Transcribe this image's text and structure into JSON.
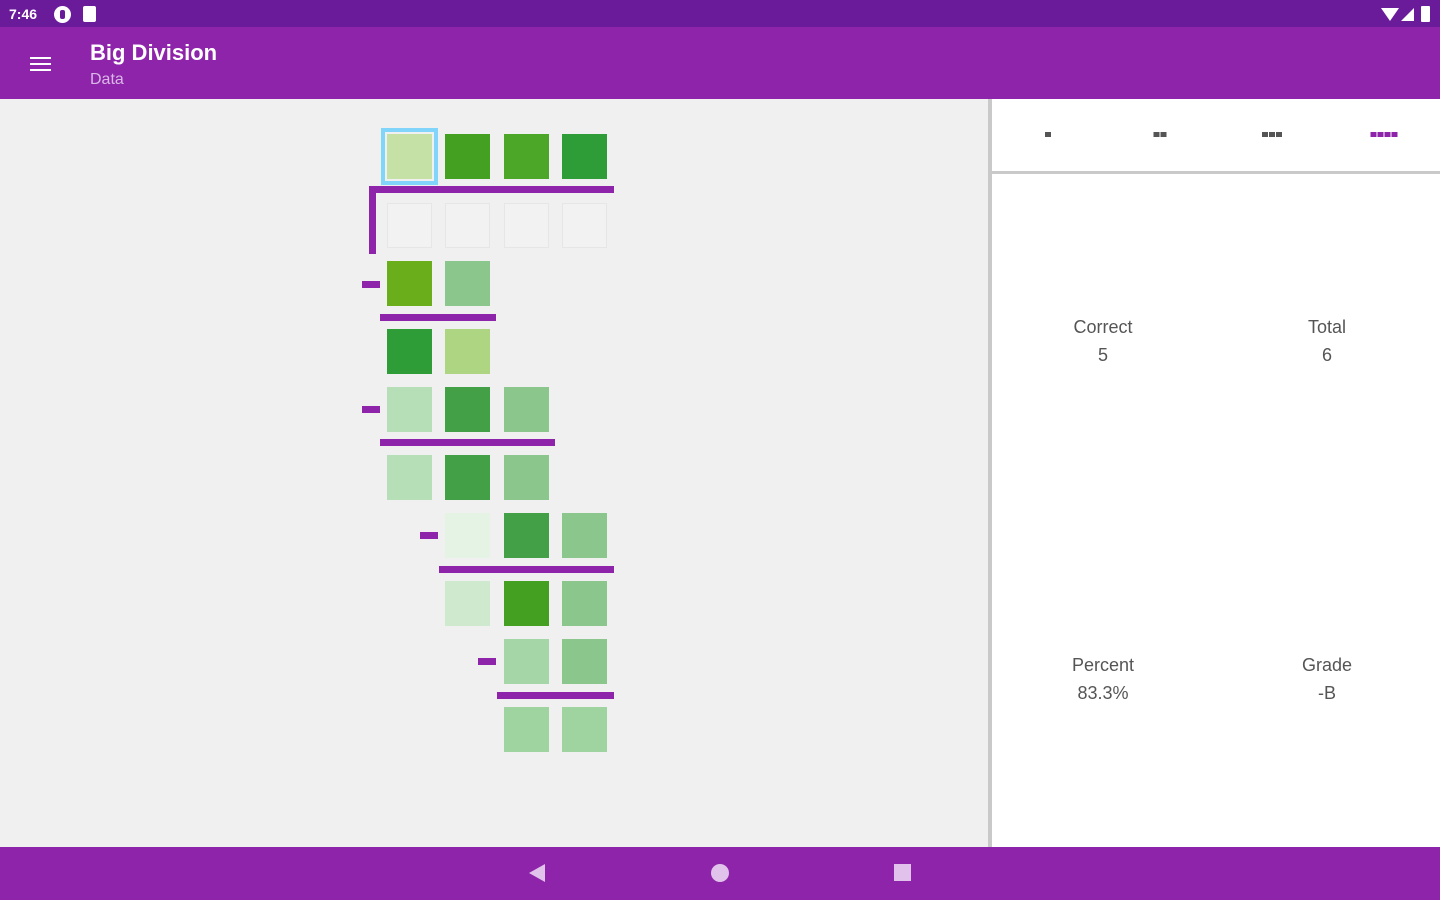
{
  "status_bar": {
    "time": "7:46"
  },
  "app_bar": {
    "title": "Big Division",
    "subtitle": "Data"
  },
  "tabs": [
    {
      "name": "tab-level-1",
      "dots": 1,
      "active": false
    },
    {
      "name": "tab-level-2",
      "dots": 2,
      "active": false
    },
    {
      "name": "tab-level-3",
      "dots": 3,
      "active": false
    },
    {
      "name": "tab-level-4",
      "dots": 4,
      "active": true
    }
  ],
  "stats": {
    "correct_label": "Correct",
    "correct_value": "5",
    "total_label": "Total",
    "total_value": "6",
    "percent_label": "Percent",
    "percent_value": "83.3%",
    "grade_label": "Grade",
    "grade_value": "-B"
  },
  "colors": {
    "status_bar": "#6a1b9a",
    "app_bar": "#8e24aa",
    "accent": "#8e24aa",
    "selected_outline": "#81d4fa",
    "nav_icons": "#e0c2ea"
  },
  "icons": {
    "menu": "menu-icon",
    "back": "back-triangle-icon",
    "home": "home-circle-icon",
    "recent": "recent-square-icon"
  },
  "board": {
    "dividend_row": [
      "#c5e1a5",
      "#43a021",
      "#4ca627",
      "#2e9d38"
    ],
    "quotient_row": [
      "",
      "",
      "",
      ""
    ],
    "steps": [
      [
        "#6aae1c",
        "#8bc78d"
      ],
      [
        "#2e9d38",
        "#aed581"
      ],
      [
        "#b6deb7",
        "#43a047",
        "#8bc78d"
      ],
      [
        "#b6deb7",
        "#43a047",
        "#8bc78d"
      ],
      [
        "#e4f3e4",
        "#43a047",
        "#8bc78d"
      ],
      [
        "#cfe9cf",
        "#43a021",
        "#8bc78d"
      ],
      [
        "#a5d6a7",
        "#8bc78d"
      ],
      [
        "#9fd39f",
        "#9fd39f"
      ]
    ]
  }
}
